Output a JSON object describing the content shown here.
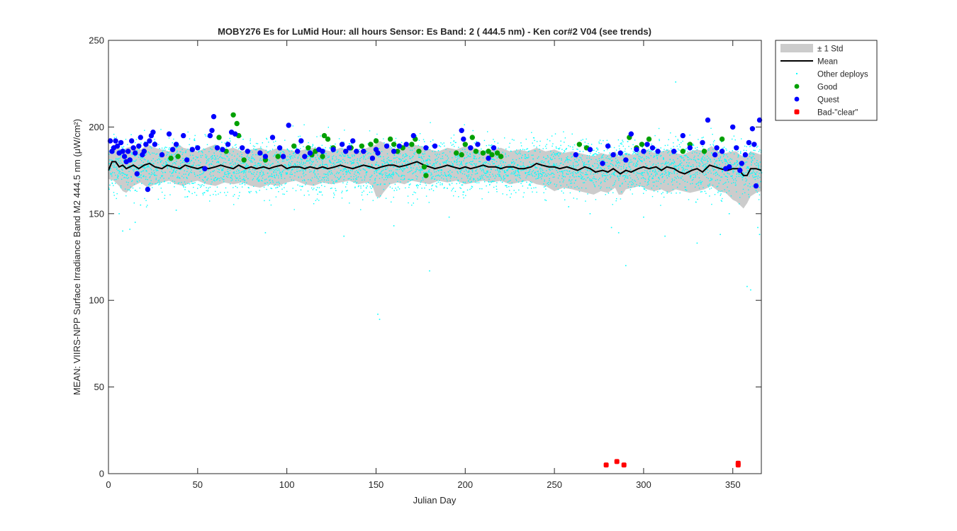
{
  "chart_data": {
    "type": "scatter",
    "title": "MOBY276   Es for LuMid  Hour: all hours  Sensor: Es Band: 2 ( 444.5 nm)  - Ken cor#2 V04 (see trends)",
    "xlabel": "Julian Day",
    "ylabel": "MEAN: VIIRS-NPP Surface Irradiance Band M2 444.5 nm (μW/cm²)",
    "xlim": [
      0,
      366
    ],
    "ylim": [
      0,
      250
    ],
    "xticks": [
      "0",
      "50",
      "100",
      "150",
      "200",
      "250",
      "300",
      "350"
    ],
    "yticks": [
      "0",
      "50",
      "100",
      "150",
      "200",
      "250"
    ],
    "grid": false,
    "legend_position": "outside-top-right",
    "legend": [
      {
        "label": "± 1 Std",
        "marker": "band",
        "color": "#cccccc"
      },
      {
        "label": "Mean",
        "marker": "line",
        "color": "#000000"
      },
      {
        "label": "Other deploys",
        "marker": "dot",
        "color": "#00ffff"
      },
      {
        "label": "Good",
        "marker": "circle",
        "color": "#00a000"
      },
      {
        "label": "Quest",
        "marker": "circle",
        "color": "#0000ff"
      },
      {
        "label": "Bad-\"clear\"",
        "marker": "square",
        "color": "#ff0000"
      }
    ],
    "mean_series": {
      "name": "Mean",
      "x": [
        0,
        2,
        4,
        6,
        8,
        10,
        12,
        14,
        17,
        20,
        23,
        26,
        30,
        33,
        36,
        40,
        43,
        46,
        50,
        53,
        56,
        60,
        63,
        66,
        70,
        73,
        77,
        80,
        83,
        87,
        90,
        93,
        97,
        100,
        103,
        107,
        110,
        113,
        117,
        120,
        123,
        127,
        130,
        133,
        137,
        140,
        143,
        147,
        150,
        153,
        157,
        160,
        163,
        167,
        170,
        173,
        177,
        180,
        183,
        187,
        190,
        193,
        197,
        200,
        203,
        207,
        210,
        213,
        217,
        220,
        223,
        227,
        230,
        233,
        237,
        240,
        243,
        247,
        250,
        253,
        257,
        260,
        263,
        267,
        270,
        273,
        277,
        280,
        283,
        287,
        290,
        293,
        297,
        300,
        303,
        307,
        310,
        313,
        317,
        320,
        323,
        327,
        330,
        333,
        337,
        340,
        343,
        347,
        350,
        353,
        356,
        358,
        360,
        363,
        366
      ],
      "y": [
        175,
        180,
        180,
        177,
        178,
        176,
        177,
        178,
        176,
        178,
        179,
        177,
        176,
        178,
        177,
        176,
        178,
        177,
        176,
        177,
        176,
        177,
        178,
        177,
        176,
        178,
        176,
        177,
        176,
        177,
        176,
        177,
        178,
        176,
        177,
        177,
        176,
        177,
        176,
        177,
        176,
        177,
        178,
        177,
        176,
        177,
        178,
        177,
        176,
        177,
        178,
        178,
        177,
        178,
        179,
        180,
        178,
        177,
        176,
        177,
        178,
        177,
        176,
        177,
        176,
        177,
        178,
        177,
        177,
        176,
        177,
        177,
        176,
        176,
        177,
        179,
        178,
        177,
        177,
        176,
        177,
        176,
        175,
        177,
        176,
        174,
        175,
        174,
        176,
        173,
        175,
        174,
        176,
        177,
        176,
        177,
        175,
        177,
        176,
        174,
        173,
        175,
        176,
        174,
        178,
        177,
        176,
        175,
        176,
        176,
        172,
        172,
        176,
        176,
        175
      ]
    },
    "std_band": {
      "name": "± 1 Std",
      "x": [
        0,
        3,
        6,
        8,
        10,
        14,
        18,
        22,
        26,
        30,
        34,
        38,
        42,
        46,
        50,
        55,
        60,
        65,
        70,
        75,
        80,
        85,
        90,
        95,
        100,
        105,
        110,
        115,
        120,
        125,
        130,
        135,
        140,
        145,
        148,
        150,
        152,
        154,
        158,
        162,
        166,
        170,
        175,
        180,
        185,
        190,
        195,
        200,
        205,
        210,
        215,
        220,
        225,
        230,
        235,
        240,
        245,
        250,
        255,
        260,
        264,
        268,
        272,
        276,
        280,
        284,
        286,
        288,
        290,
        294,
        298,
        302,
        306,
        310,
        314,
        318,
        322,
        326,
        330,
        334,
        338,
        342,
        346,
        350,
        352,
        354,
        356,
        358,
        360,
        363,
        366
      ],
      "upper": [
        185,
        190,
        188,
        186,
        188,
        189,
        187,
        190,
        188,
        187,
        186,
        191,
        188,
        187,
        186,
        188,
        190,
        187,
        188,
        186,
        187,
        188,
        186,
        188,
        187,
        186,
        187,
        188,
        187,
        186,
        188,
        187,
        186,
        188,
        189,
        190,
        192,
        191,
        188,
        187,
        188,
        190,
        189,
        187,
        186,
        188,
        187,
        189,
        188,
        186,
        187,
        188,
        186,
        187,
        186,
        188,
        186,
        187,
        185,
        186,
        185,
        184,
        183,
        185,
        184,
        186,
        183,
        184,
        185,
        184,
        186,
        187,
        185,
        186,
        187,
        185,
        184,
        186,
        187,
        186,
        189,
        186,
        185,
        186,
        186,
        184,
        183,
        184,
        186,
        185,
        184
      ],
      "lower": [
        170,
        169,
        166,
        163,
        162,
        166,
        168,
        165,
        167,
        168,
        169,
        167,
        166,
        168,
        169,
        167,
        166,
        168,
        167,
        168,
        166,
        165,
        167,
        166,
        168,
        169,
        167,
        166,
        168,
        167,
        168,
        169,
        167,
        168,
        166,
        160,
        159,
        162,
        167,
        168,
        167,
        169,
        168,
        167,
        169,
        168,
        169,
        167,
        168,
        169,
        168,
        169,
        167,
        168,
        169,
        167,
        166,
        163,
        165,
        164,
        163,
        162,
        161,
        163,
        162,
        165,
        161,
        161,
        164,
        165,
        166,
        164,
        163,
        164,
        162,
        164,
        163,
        162,
        163,
        164,
        166,
        163,
        162,
        158,
        157,
        155,
        153,
        156,
        160,
        162,
        163
      ]
    },
    "other_deploys": {
      "name": "Other deploys",
      "description_values": "Dense daily cloud of values, ~155-200, clustered around the mean",
      "x_range": [
        0,
        366
      ],
      "center": 177,
      "typical_spread": 9,
      "outliers": [
        [
          6,
          150
        ],
        [
          8,
          140
        ],
        [
          12,
          141
        ],
        [
          15,
          145
        ],
        [
          18,
          155
        ],
        [
          38,
          152
        ],
        [
          88,
          139
        ],
        [
          132,
          137
        ],
        [
          151,
          92
        ],
        [
          152,
          89
        ],
        [
          160,
          143
        ],
        [
          180,
          117
        ],
        [
          191,
          148
        ],
        [
          258,
          154
        ],
        [
          270,
          150
        ],
        [
          282,
          142
        ],
        [
          286,
          139
        ],
        [
          290,
          120
        ],
        [
          300,
          148
        ],
        [
          312,
          137
        ],
        [
          318,
          226
        ],
        [
          330,
          133
        ],
        [
          343,
          138
        ],
        [
          348,
          150
        ],
        [
          358,
          108
        ],
        [
          360,
          106
        ],
        [
          364,
          142
        ],
        [
          365,
          138
        ]
      ]
    },
    "good": {
      "name": "Good",
      "x": [
        35,
        39,
        62,
        66,
        70,
        72,
        73,
        76,
        88,
        95,
        104,
        112,
        114,
        116,
        120,
        121,
        123,
        126,
        136,
        142,
        147,
        150,
        158,
        160,
        162,
        165,
        170,
        172,
        174,
        177,
        178,
        195,
        198,
        200,
        204,
        206,
        210,
        213,
        215,
        218,
        220,
        264,
        268,
        292,
        296,
        299,
        303,
        322,
        326,
        334,
        344
      ],
      "y": [
        182,
        183,
        194,
        186,
        207,
        202,
        195,
        181,
        181,
        183,
        189,
        188,
        184,
        186,
        183,
        195,
        193,
        188,
        188,
        189,
        190,
        192,
        193,
        190,
        186,
        188,
        190,
        193,
        186,
        177,
        172,
        185,
        184,
        190,
        194,
        186,
        185,
        186,
        184,
        185,
        183,
        190,
        188,
        194,
        188,
        190,
        193,
        186,
        190,
        186,
        193
      ]
    },
    "quest": {
      "name": "Quest",
      "x": [
        1,
        2,
        3,
        4,
        5,
        6,
        7,
        8,
        9,
        10,
        11,
        12,
        13,
        14,
        15,
        16,
        17,
        18,
        19,
        20,
        21,
        22,
        23,
        24,
        25,
        26,
        30,
        34,
        36,
        38,
        42,
        44,
        47,
        50,
        54,
        57,
        58,
        59,
        61,
        64,
        67,
        69,
        71,
        75,
        78,
        85,
        88,
        92,
        96,
        98,
        101,
        106,
        108,
        110,
        113,
        118,
        120,
        126,
        131,
        133,
        135,
        137,
        139,
        143,
        148,
        150,
        151,
        156,
        160,
        163,
        167,
        171,
        178,
        183,
        198,
        199,
        203,
        207,
        213,
        216,
        262,
        270,
        277,
        280,
        283,
        287,
        290,
        293,
        296,
        300,
        302,
        305,
        308,
        317,
        322,
        326,
        333,
        336,
        340,
        341,
        344,
        346,
        348,
        350,
        352,
        354,
        355,
        357,
        359,
        361,
        362,
        363,
        365
      ],
      "y": [
        192,
        186,
        188,
        192,
        189,
        185,
        191,
        186,
        183,
        180,
        186,
        181,
        192,
        188,
        185,
        173,
        189,
        194,
        184,
        186,
        190,
        164,
        192,
        195,
        197,
        190,
        184,
        196,
        187,
        190,
        195,
        181,
        187,
        188,
        176,
        195,
        198,
        206,
        188,
        187,
        190,
        197,
        196,
        188,
        186,
        185,
        183,
        194,
        188,
        183,
        201,
        186,
        192,
        183,
        185,
        187,
        186,
        187,
        190,
        186,
        188,
        192,
        186,
        186,
        182,
        187,
        185,
        189,
        186,
        189,
        190,
        195,
        188,
        189,
        198,
        193,
        188,
        190,
        182,
        188,
        184,
        187,
        179,
        189,
        184,
        185,
        181,
        196,
        187,
        186,
        190,
        188,
        186,
        186,
        195,
        188,
        191,
        204,
        184,
        188,
        186,
        176,
        177,
        200,
        188,
        175,
        179,
        184,
        191,
        199,
        190,
        166,
        204
      ]
    },
    "bad_clear": {
      "name": "Bad-\"clear\"",
      "x": [
        279,
        285,
        289,
        353,
        353
      ],
      "y": [
        5,
        7,
        5,
        5,
        6
      ]
    }
  }
}
